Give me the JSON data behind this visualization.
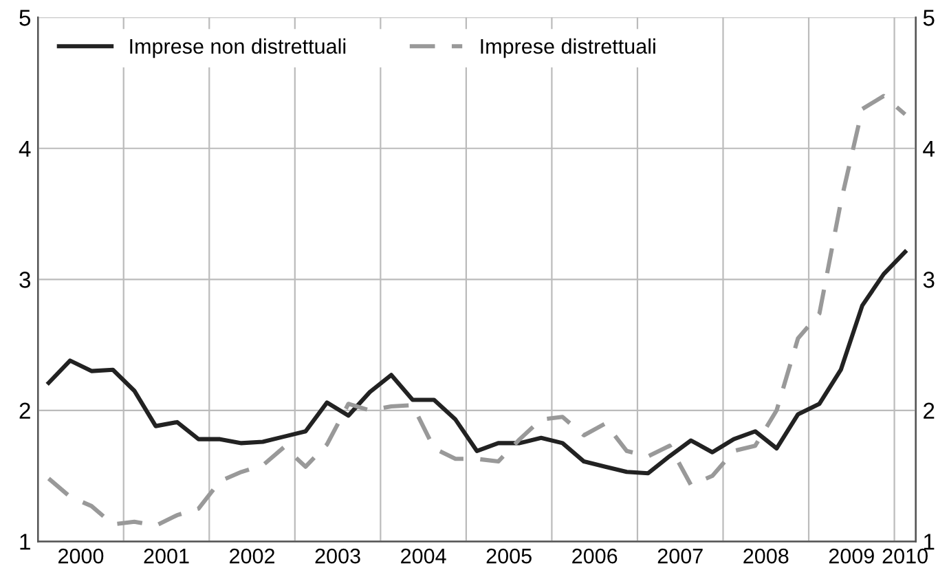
{
  "chart_data": {
    "type": "line",
    "x": [
      2000.125,
      2000.375,
      2000.625,
      2000.875,
      2001.125,
      2001.375,
      2001.625,
      2001.875,
      2002.125,
      2002.375,
      2002.625,
      2002.875,
      2003.125,
      2003.375,
      2003.625,
      2003.875,
      2004.125,
      2004.375,
      2004.625,
      2004.875,
      2005.125,
      2005.375,
      2005.625,
      2005.875,
      2006.125,
      2006.375,
      2006.625,
      2006.875,
      2007.125,
      2007.375,
      2007.625,
      2007.875,
      2008.125,
      2008.375,
      2008.625,
      2008.875,
      2009.125,
      2009.375,
      2009.625,
      2009.875,
      2010.125
    ],
    "series": [
      {
        "name": "Imprese non distrettuali",
        "color": "#222222",
        "line_style": "solid",
        "values": [
          2.21,
          2.38,
          2.3,
          2.31,
          2.15,
          1.88,
          1.91,
          1.78,
          1.78,
          1.75,
          1.76,
          1.8,
          1.84,
          2.06,
          1.96,
          2.14,
          2.27,
          2.08,
          2.08,
          1.93,
          1.69,
          1.75,
          1.75,
          1.79,
          1.75,
          1.61,
          1.57,
          1.53,
          1.52,
          1.65,
          1.77,
          1.68,
          1.78,
          1.84,
          1.71,
          1.97,
          2.05,
          2.31,
          2.8,
          3.04,
          3.21
        ]
      },
      {
        "name": "Imprese distrettuali",
        "color": "#999999",
        "line_style": "dashed",
        "values": [
          1.48,
          1.34,
          1.27,
          1.13,
          1.15,
          1.12,
          1.2,
          1.25,
          1.46,
          1.53,
          1.58,
          1.72,
          1.57,
          1.74,
          2.05,
          2.0,
          2.03,
          2.04,
          1.71,
          1.63,
          1.63,
          1.61,
          1.78,
          1.93,
          1.95,
          1.81,
          1.9,
          1.69,
          1.65,
          1.73,
          1.43,
          1.5,
          1.69,
          1.73,
          2.0,
          2.55,
          2.74,
          3.59,
          4.3,
          4.4,
          4.26
        ]
      }
    ],
    "xlim": [
      2000,
      2010.25
    ],
    "xticks": [
      {
        "value": 2000,
        "label": null
      },
      {
        "value": 2000.5,
        "label": "2000"
      },
      {
        "value": 2001,
        "label": null
      },
      {
        "value": 2001.5,
        "label": "2001"
      },
      {
        "value": 2002,
        "label": null
      },
      {
        "value": 2002.5,
        "label": "2002"
      },
      {
        "value": 2003,
        "label": null
      },
      {
        "value": 2003.5,
        "label": "2003"
      },
      {
        "value": 2004,
        "label": null
      },
      {
        "value": 2004.5,
        "label": "2004"
      },
      {
        "value": 2005,
        "label": null
      },
      {
        "value": 2005.5,
        "label": "2005"
      },
      {
        "value": 2006,
        "label": null
      },
      {
        "value": 2006.5,
        "label": "2006"
      },
      {
        "value": 2007,
        "label": null
      },
      {
        "value": 2007.5,
        "label": "2007"
      },
      {
        "value": 2008,
        "label": null
      },
      {
        "value": 2008.5,
        "label": "2008"
      },
      {
        "value": 2009,
        "label": null
      },
      {
        "value": 2009.5,
        "label": "2009"
      },
      {
        "value": 2010,
        "label": null
      },
      {
        "value": 2010.125,
        "label": "2010"
      }
    ],
    "ylim": [
      1,
      5
    ],
    "yticks": [
      1,
      2,
      3,
      4,
      5
    ],
    "y2lim": [
      1,
      5
    ],
    "y2ticks": [
      1,
      2,
      3,
      4,
      5
    ],
    "grid": true,
    "legend": "top left"
  }
}
